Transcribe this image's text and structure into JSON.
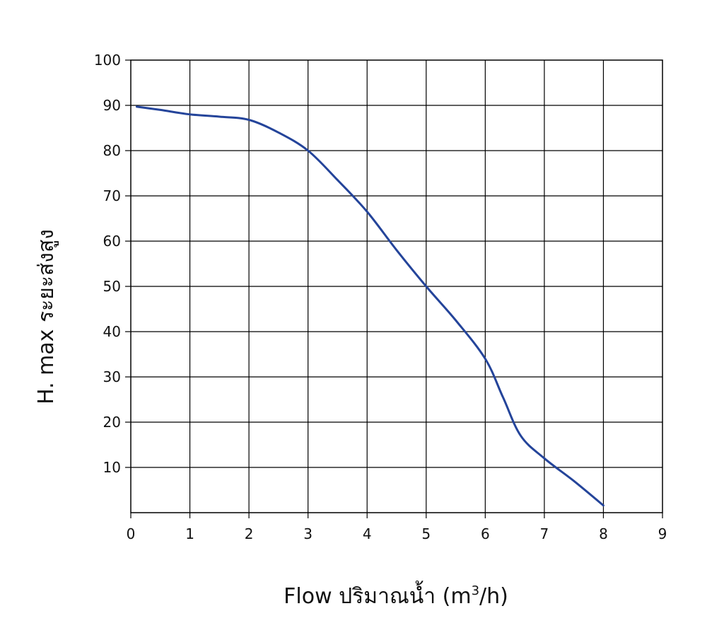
{
  "chart_data": {
    "type": "line",
    "xlabel": "Flow  ปริมาณน้ำ (m",
    "xlabel_sup": "3",
    "xlabel_tail": "/h)",
    "ylabel": "H. max  ระยะส่งสูง",
    "xlim": [
      0,
      9
    ],
    "ylim": [
      0,
      100
    ],
    "x_ticks": [
      "0",
      "1",
      "2",
      "3",
      "4",
      "5",
      "6",
      "7",
      "8",
      "9"
    ],
    "y_ticks": [
      "10",
      "20",
      "30",
      "40",
      "50",
      "60",
      "70",
      "80",
      "90",
      "100"
    ],
    "grid": true,
    "series": [
      {
        "color": "#24449a",
        "x": [
          0.1,
          0.5,
          1,
          1.5,
          2,
          2.5,
          3,
          3.5,
          4,
          4.5,
          5,
          5.5,
          6,
          6.3,
          6.6,
          7,
          7.5,
          8
        ],
        "y": [
          89.7,
          89,
          88,
          87.5,
          86.8,
          84,
          80,
          73.5,
          66.5,
          58,
          50,
          42.5,
          34,
          25.5,
          17,
          12,
          7,
          1.6
        ]
      }
    ]
  }
}
